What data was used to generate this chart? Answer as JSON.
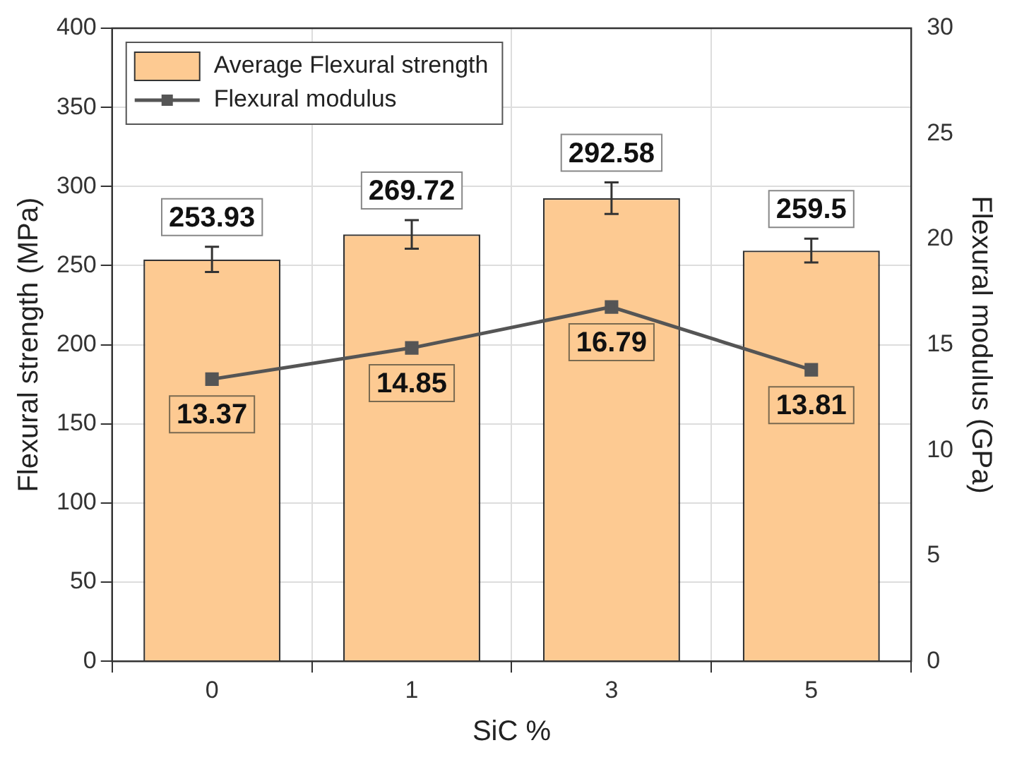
{
  "chart_data": {
    "type": "bar",
    "xlabel": "SiC %",
    "ylabel": "Flexural strength (MPa)",
    "y2label": "Flexural modulus (GPa)",
    "categories": [
      "0",
      "1",
      "3",
      "5"
    ],
    "series": [
      {
        "name": "Average Flexural strength",
        "color": "#fdca92",
        "values": [
          253.93,
          269.72,
          292.58,
          259.5
        ],
        "errors": [
          8,
          9,
          10,
          7.5
        ]
      },
      {
        "name": "Flexural modulus",
        "type": "line",
        "axis": "y2",
        "color": "#555555",
        "values": [
          13.37,
          14.85,
          16.79,
          13.81
        ]
      }
    ],
    "ylim": [
      0,
      400
    ],
    "yticks": [
      0,
      50,
      100,
      150,
      200,
      250,
      300,
      350,
      400
    ],
    "y2lim": [
      0,
      30
    ],
    "y2ticks": [
      0,
      5,
      10,
      15,
      20,
      25,
      30
    ],
    "grid": true,
    "legend": "top left",
    "marker": "square",
    "line_style": "solid",
    "data_labels": true
  }
}
